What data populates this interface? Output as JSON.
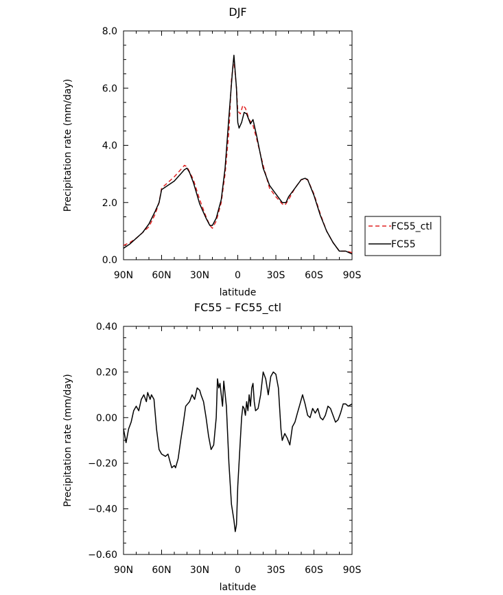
{
  "chart_data": [
    {
      "type": "line",
      "title": "DJF",
      "xlabel": "latitude",
      "ylabel": "Precipitation rate (mm/day)",
      "xlim": [
        90,
        -90
      ],
      "ylim": [
        0,
        8
      ],
      "x_ticks": [
        {
          "value": 90,
          "label": "90N"
        },
        {
          "value": 60,
          "label": "60N"
        },
        {
          "value": 30,
          "label": "30N"
        },
        {
          "value": 0,
          "label": "0"
        },
        {
          "value": -30,
          "label": "30S"
        },
        {
          "value": -60,
          "label": "60S"
        },
        {
          "value": -90,
          "label": "90S"
        }
      ],
      "y_ticks": [
        {
          "value": 0,
          "label": "0.0"
        },
        {
          "value": 2,
          "label": "2.0"
        },
        {
          "value": 4,
          "label": "4.0"
        },
        {
          "value": 6,
          "label": "6.0"
        },
        {
          "value": 8,
          "label": "8.0"
        }
      ],
      "legend": {
        "placement": "right",
        "entries": [
          "FC55_ctl",
          "FC55"
        ]
      },
      "series": [
        {
          "name": "FC55_ctl",
          "color": "#e02020",
          "dash": true,
          "points": [
            [
              90,
              0.5
            ],
            [
              85,
              0.6
            ],
            [
              80,
              0.75
            ],
            [
              75,
              0.95
            ],
            [
              70,
              1.15
            ],
            [
              65,
              1.6
            ],
            [
              62,
              2.0
            ],
            [
              60,
              2.5
            ],
            [
              55,
              2.7
            ],
            [
              50,
              2.9
            ],
            [
              45,
              3.15
            ],
            [
              42,
              3.3
            ],
            [
              40,
              3.25
            ],
            [
              35,
              2.8
            ],
            [
              30,
              2.1
            ],
            [
              25,
              1.5
            ],
            [
              22,
              1.2
            ],
            [
              20,
              1.1
            ],
            [
              17,
              1.35
            ],
            [
              13,
              2.0
            ],
            [
              10,
              3.0
            ],
            [
              7,
              4.5
            ],
            [
              5,
              6.3
            ],
            [
              3,
              7.0
            ],
            [
              1,
              6.0
            ],
            [
              0,
              5.2
            ],
            [
              -2,
              5.1
            ],
            [
              -4,
              5.4
            ],
            [
              -6,
              5.3
            ],
            [
              -9,
              4.9
            ],
            [
              -12,
              4.7
            ],
            [
              -15,
              4.2
            ],
            [
              -20,
              3.3
            ],
            [
              -25,
              2.5
            ],
            [
              -30,
              2.2
            ],
            [
              -35,
              1.95
            ],
            [
              -37,
              1.9
            ],
            [
              -40,
              2.1
            ],
            [
              -45,
              2.5
            ],
            [
              -50,
              2.8
            ],
            [
              -55,
              2.8
            ],
            [
              -60,
              2.3
            ],
            [
              -65,
              1.6
            ],
            [
              -70,
              1.0
            ],
            [
              -75,
              0.6
            ],
            [
              -80,
              0.3
            ],
            [
              -85,
              0.3
            ],
            [
              -90,
              0.25
            ]
          ]
        },
        {
          "name": "FC55",
          "color": "#000000",
          "dash": false,
          "points": [
            [
              90,
              0.4
            ],
            [
              85,
              0.55
            ],
            [
              80,
              0.75
            ],
            [
              75,
              0.95
            ],
            [
              70,
              1.25
            ],
            [
              65,
              1.7
            ],
            [
              62,
              2.0
            ],
            [
              60,
              2.45
            ],
            [
              55,
              2.6
            ],
            [
              50,
              2.75
            ],
            [
              45,
              3.0
            ],
            [
              42,
              3.15
            ],
            [
              40,
              3.2
            ],
            [
              38,
              3.05
            ],
            [
              35,
              2.7
            ],
            [
              30,
              1.95
            ],
            [
              25,
              1.45
            ],
            [
              22,
              1.2
            ],
            [
              20,
              1.2
            ],
            [
              17,
              1.45
            ],
            [
              13,
              2.1
            ],
            [
              10,
              3.2
            ],
            [
              7,
              5.0
            ],
            [
              4,
              6.7
            ],
            [
              3,
              7.15
            ],
            [
              1,
              6.0
            ],
            [
              0,
              4.8
            ],
            [
              -1,
              4.6
            ],
            [
              -3,
              4.8
            ],
            [
              -5,
              5.15
            ],
            [
              -7,
              5.1
            ],
            [
              -10,
              4.75
            ],
            [
              -12,
              4.9
            ],
            [
              -15,
              4.3
            ],
            [
              -20,
              3.2
            ],
            [
              -25,
              2.6
            ],
            [
              -30,
              2.3
            ],
            [
              -35,
              2.0
            ],
            [
              -38,
              2.0
            ],
            [
              -40,
              2.2
            ],
            [
              -45,
              2.5
            ],
            [
              -50,
              2.8
            ],
            [
              -53,
              2.85
            ],
            [
              -55,
              2.8
            ],
            [
              -60,
              2.25
            ],
            [
              -65,
              1.55
            ],
            [
              -70,
              1.0
            ],
            [
              -75,
              0.6
            ],
            [
              -80,
              0.3
            ],
            [
              -85,
              0.3
            ],
            [
              -90,
              0.2
            ]
          ]
        }
      ]
    },
    {
      "type": "line",
      "title": "FC55 – FC55_ctl",
      "xlabel": "latitude",
      "ylabel": "Precipitation rate (mm/day)",
      "xlim": [
        90,
        -90
      ],
      "ylim": [
        -0.6,
        0.4
      ],
      "x_ticks": [
        {
          "value": 90,
          "label": "90N"
        },
        {
          "value": 60,
          "label": "60N"
        },
        {
          "value": 30,
          "label": "30N"
        },
        {
          "value": 0,
          "label": "0"
        },
        {
          "value": -30,
          "label": "30S"
        },
        {
          "value": -60,
          "label": "60S"
        },
        {
          "value": -90,
          "label": "90S"
        }
      ],
      "y_ticks": [
        {
          "value": 0.4,
          "label": "0.40"
        },
        {
          "value": 0.2,
          "label": "0.20"
        },
        {
          "value": 0.0,
          "label": "0.00"
        },
        {
          "value": -0.2,
          "label": "−0.20"
        },
        {
          "value": -0.4,
          "label": "−0.40"
        },
        {
          "value": -0.6,
          "label": "−0.60"
        }
      ],
      "series": [
        {
          "name": "",
          "color": "#000000",
          "dash": false,
          "points": [
            [
              90,
              -0.05
            ],
            [
              88,
              -0.11
            ],
            [
              86,
              -0.05
            ],
            [
              84,
              -0.02
            ],
            [
              82,
              0.03
            ],
            [
              80,
              0.05
            ],
            [
              78,
              0.03
            ],
            [
              76,
              0.08
            ],
            [
              74,
              0.1
            ],
            [
              72,
              0.07
            ],
            [
              71,
              0.11
            ],
            [
              69,
              0.08
            ],
            [
              68,
              0.1
            ],
            [
              66,
              0.08
            ],
            [
              64,
              -0.05
            ],
            [
              62,
              -0.14
            ],
            [
              60,
              -0.16
            ],
            [
              57,
              -0.17
            ],
            [
              55,
              -0.16
            ],
            [
              53,
              -0.2
            ],
            [
              52,
              -0.22
            ],
            [
              50,
              -0.21
            ],
            [
              49,
              -0.22
            ],
            [
              47,
              -0.18
            ],
            [
              45,
              -0.1
            ],
            [
              43,
              -0.03
            ],
            [
              41,
              0.05
            ],
            [
              38,
              0.07
            ],
            [
              36,
              0.1
            ],
            [
              34,
              0.08
            ],
            [
              32,
              0.13
            ],
            [
              30,
              0.12
            ],
            [
              29,
              0.1
            ],
            [
              27,
              0.07
            ],
            [
              25,
              0.0
            ],
            [
              23,
              -0.08
            ],
            [
              21,
              -0.14
            ],
            [
              19,
              -0.12
            ],
            [
              17,
              0.0
            ],
            [
              16,
              0.17
            ],
            [
              15,
              0.13
            ],
            [
              14,
              0.15
            ],
            [
              13,
              0.1
            ],
            [
              12,
              0.05
            ],
            [
              11,
              0.16
            ],
            [
              9,
              0.05
            ],
            [
              7,
              -0.2
            ],
            [
              5,
              -0.38
            ],
            [
              3,
              -0.45
            ],
            [
              2,
              -0.5
            ],
            [
              1,
              -0.47
            ],
            [
              0,
              -0.3
            ],
            [
              -2,
              -0.1
            ],
            [
              -3,
              0.0
            ],
            [
              -4,
              0.05
            ],
            [
              -5,
              0.04
            ],
            [
              -6,
              0.01
            ],
            [
              -7,
              0.07
            ],
            [
              -8,
              0.03
            ],
            [
              -9,
              0.1
            ],
            [
              -10,
              0.05
            ],
            [
              -11,
              0.13
            ],
            [
              -12,
              0.15
            ],
            [
              -13,
              0.07
            ],
            [
              -14,
              0.03
            ],
            [
              -16,
              0.04
            ],
            [
              -18,
              0.1
            ],
            [
              -20,
              0.2
            ],
            [
              -22,
              0.17
            ],
            [
              -24,
              0.1
            ],
            [
              -26,
              0.18
            ],
            [
              -28,
              0.2
            ],
            [
              -30,
              0.19
            ],
            [
              -32,
              0.13
            ],
            [
              -34,
              -0.05
            ],
            [
              -35,
              -0.1
            ],
            [
              -37,
              -0.07
            ],
            [
              -39,
              -0.09
            ],
            [
              -41,
              -0.12
            ],
            [
              -43,
              -0.04
            ],
            [
              -45,
              -0.02
            ],
            [
              -47,
              0.02
            ],
            [
              -49,
              0.06
            ],
            [
              -51,
              0.1
            ],
            [
              -53,
              0.06
            ],
            [
              -55,
              0.01
            ],
            [
              -57,
              0.0
            ],
            [
              -59,
              0.04
            ],
            [
              -61,
              0.02
            ],
            [
              -63,
              0.04
            ],
            [
              -65,
              0.0
            ],
            [
              -67,
              -0.01
            ],
            [
              -69,
              0.01
            ],
            [
              -71,
              0.05
            ],
            [
              -73,
              0.04
            ],
            [
              -75,
              0.01
            ],
            [
              -77,
              -0.02
            ],
            [
              -79,
              -0.01
            ],
            [
              -81,
              0.02
            ],
            [
              -83,
              0.06
            ],
            [
              -85,
              0.06
            ],
            [
              -87,
              0.05
            ],
            [
              -90,
              0.06
            ]
          ]
        }
      ]
    }
  ]
}
